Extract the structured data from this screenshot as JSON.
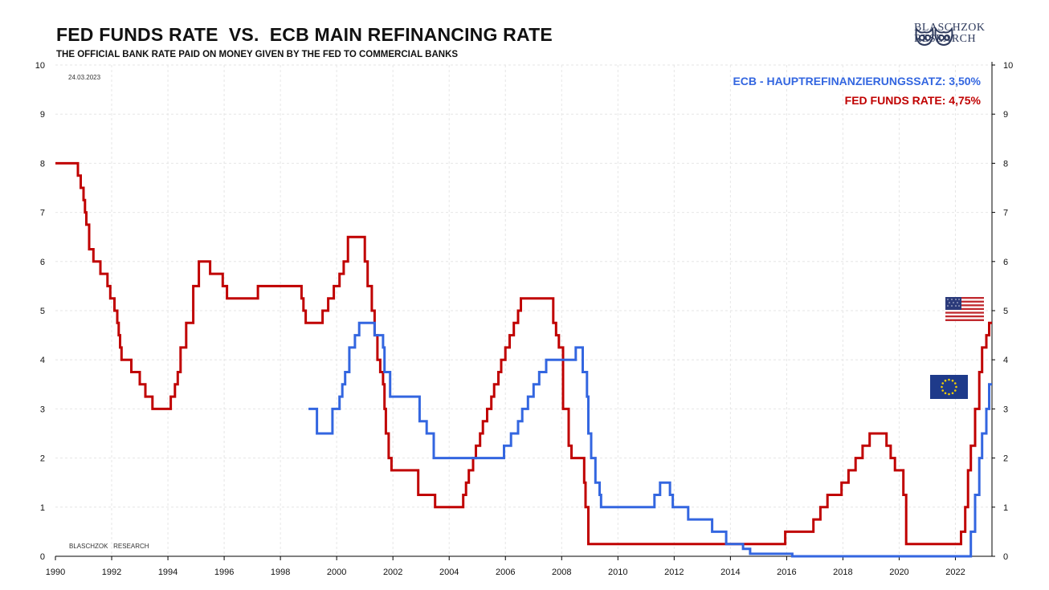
{
  "title": "FED FUNDS RATE  VS.  ECB MAIN REFINANCING RATE",
  "subtitle": "THE OFFICIAL BANK RATE PAID ON MONEY GIVEN BY THE FED TO COMMERCIAL BANKS",
  "logo": {
    "line1": "BLASCHZOK",
    "line2": "RESEARCH",
    "icon": "owl-logo-icon"
  },
  "date_label": "24.03.2023",
  "watermark": "BLASCHZOK   RESEARCH",
  "flags": {
    "us": "us-flag-icon",
    "eu": "eu-flag-icon"
  },
  "colors": {
    "fed": "#c00000",
    "ecb": "#3366e0",
    "grid": "#e6e6e6",
    "axis": "#000000"
  },
  "chart_data": {
    "type": "line",
    "title": "FED FUNDS RATE  VS.  ECB MAIN REFINANCING RATE",
    "subtitle": "THE OFFICIAL BANK RATE PAID ON MONEY GIVEN BY THE FED TO COMMERCIAL BANKS",
    "xlabel": "",
    "ylabel": "",
    "xlim": [
      1990,
      2023.3
    ],
    "ylim": [
      0,
      10
    ],
    "x_ticks": [
      "1990",
      "1992",
      "1994",
      "1996",
      "1998",
      "2000",
      "2002",
      "2004",
      "2006",
      "2008",
      "2010",
      "2012",
      "2014",
      "2016",
      "2018",
      "2020",
      "2022"
    ],
    "y_ticks": [
      "0",
      "1",
      "2",
      "3",
      "4",
      "5",
      "6",
      "7",
      "8",
      "9",
      "10"
    ],
    "grid": true,
    "legend_position": "top-right",
    "legend": [
      {
        "label": "ECB - HAUPTREFINANZIERUNGSSATZ: 3,50%",
        "color": "#3366e0"
      },
      {
        "label": "FED FUNDS RATE: 4,75%",
        "color": "#c00000"
      }
    ],
    "series": [
      {
        "key": "fed",
        "step": true,
        "points": [
          [
            1990.0,
            8.0
          ],
          [
            1990.8,
            7.75
          ],
          [
            1990.9,
            7.5
          ],
          [
            1991.0,
            7.25
          ],
          [
            1991.05,
            7.0
          ],
          [
            1991.1,
            6.75
          ],
          [
            1991.2,
            6.25
          ],
          [
            1991.35,
            6.0
          ],
          [
            1991.6,
            5.75
          ],
          [
            1991.85,
            5.5
          ],
          [
            1991.95,
            5.25
          ],
          [
            1992.1,
            5.0
          ],
          [
            1992.2,
            4.75
          ],
          [
            1992.25,
            4.5
          ],
          [
            1992.3,
            4.25
          ],
          [
            1992.35,
            4.0
          ],
          [
            1992.7,
            3.75
          ],
          [
            1993.0,
            3.5
          ],
          [
            1993.2,
            3.25
          ],
          [
            1993.45,
            3.0
          ],
          [
            1994.1,
            3.25
          ],
          [
            1994.25,
            3.5
          ],
          [
            1994.35,
            3.75
          ],
          [
            1994.45,
            4.25
          ],
          [
            1994.65,
            4.75
          ],
          [
            1994.9,
            5.5
          ],
          [
            1995.1,
            6.0
          ],
          [
            1995.5,
            5.75
          ],
          [
            1995.95,
            5.5
          ],
          [
            1996.1,
            5.25
          ],
          [
            1997.2,
            5.5
          ],
          [
            1998.75,
            5.25
          ],
          [
            1998.82,
            5.0
          ],
          [
            1998.9,
            4.75
          ],
          [
            1999.5,
            5.0
          ],
          [
            1999.7,
            5.25
          ],
          [
            1999.9,
            5.5
          ],
          [
            2000.1,
            5.75
          ],
          [
            2000.25,
            6.0
          ],
          [
            2000.4,
            6.5
          ],
          [
            2001.0,
            6.0
          ],
          [
            2001.1,
            5.5
          ],
          [
            2001.25,
            5.0
          ],
          [
            2001.35,
            4.5
          ],
          [
            2001.45,
            4.0
          ],
          [
            2001.55,
            3.75
          ],
          [
            2001.65,
            3.5
          ],
          [
            2001.7,
            3.0
          ],
          [
            2001.75,
            2.5
          ],
          [
            2001.85,
            2.0
          ],
          [
            2001.95,
            1.75
          ],
          [
            2002.9,
            1.25
          ],
          [
            2003.5,
            1.0
          ],
          [
            2004.5,
            1.25
          ],
          [
            2004.6,
            1.5
          ],
          [
            2004.7,
            1.75
          ],
          [
            2004.85,
            2.0
          ],
          [
            2004.95,
            2.25
          ],
          [
            2005.1,
            2.5
          ],
          [
            2005.2,
            2.75
          ],
          [
            2005.35,
            3.0
          ],
          [
            2005.5,
            3.25
          ],
          [
            2005.6,
            3.5
          ],
          [
            2005.75,
            3.75
          ],
          [
            2005.85,
            4.0
          ],
          [
            2006.0,
            4.25
          ],
          [
            2006.15,
            4.5
          ],
          [
            2006.3,
            4.75
          ],
          [
            2006.45,
            5.0
          ],
          [
            2006.55,
            5.25
          ],
          [
            2007.7,
            4.75
          ],
          [
            2007.8,
            4.5
          ],
          [
            2007.9,
            4.25
          ],
          [
            2008.05,
            3.0
          ],
          [
            2008.25,
            2.25
          ],
          [
            2008.35,
            2.0
          ],
          [
            2008.8,
            1.5
          ],
          [
            2008.85,
            1.0
          ],
          [
            2008.95,
            0.25
          ],
          [
            2015.95,
            0.5
          ],
          [
            2016.95,
            0.75
          ],
          [
            2017.2,
            1.0
          ],
          [
            2017.45,
            1.25
          ],
          [
            2017.95,
            1.5
          ],
          [
            2018.2,
            1.75
          ],
          [
            2018.45,
            2.0
          ],
          [
            2018.7,
            2.25
          ],
          [
            2018.95,
            2.5
          ],
          [
            2019.55,
            2.25
          ],
          [
            2019.7,
            2.0
          ],
          [
            2019.85,
            1.75
          ],
          [
            2020.15,
            1.25
          ],
          [
            2020.25,
            0.25
          ],
          [
            2022.2,
            0.5
          ],
          [
            2022.35,
            1.0
          ],
          [
            2022.45,
            1.75
          ],
          [
            2022.55,
            2.25
          ],
          [
            2022.7,
            3.0
          ],
          [
            2022.85,
            3.75
          ],
          [
            2022.95,
            4.25
          ],
          [
            2023.1,
            4.5
          ],
          [
            2023.2,
            4.75
          ],
          [
            2023.3,
            4.75
          ]
        ]
      },
      {
        "key": "ecb",
        "step": true,
        "points": [
          [
            1999.0,
            3.0
          ],
          [
            1999.3,
            2.5
          ],
          [
            1999.85,
            3.0
          ],
          [
            2000.1,
            3.25
          ],
          [
            2000.2,
            3.5
          ],
          [
            2000.3,
            3.75
          ],
          [
            2000.45,
            4.25
          ],
          [
            2000.65,
            4.5
          ],
          [
            2000.8,
            4.75
          ],
          [
            2001.35,
            4.5
          ],
          [
            2001.65,
            4.25
          ],
          [
            2001.7,
            3.75
          ],
          [
            2001.9,
            3.25
          ],
          [
            2002.95,
            2.75
          ],
          [
            2003.2,
            2.5
          ],
          [
            2003.45,
            2.0
          ],
          [
            2005.95,
            2.25
          ],
          [
            2006.2,
            2.5
          ],
          [
            2006.45,
            2.75
          ],
          [
            2006.6,
            3.0
          ],
          [
            2006.8,
            3.25
          ],
          [
            2007.0,
            3.5
          ],
          [
            2007.2,
            3.75
          ],
          [
            2007.45,
            4.0
          ],
          [
            2008.5,
            4.25
          ],
          [
            2008.75,
            3.75
          ],
          [
            2008.9,
            3.25
          ],
          [
            2008.95,
            2.5
          ],
          [
            2009.05,
            2.0
          ],
          [
            2009.2,
            1.5
          ],
          [
            2009.35,
            1.25
          ],
          [
            2009.4,
            1.0
          ],
          [
            2011.3,
            1.25
          ],
          [
            2011.5,
            1.5
          ],
          [
            2011.85,
            1.25
          ],
          [
            2011.95,
            1.0
          ],
          [
            2012.5,
            0.75
          ],
          [
            2013.35,
            0.5
          ],
          [
            2013.85,
            0.25
          ],
          [
            2014.45,
            0.15
          ],
          [
            2014.7,
            0.05
          ],
          [
            2016.2,
            0.0
          ],
          [
            2022.55,
            0.5
          ],
          [
            2022.7,
            1.25
          ],
          [
            2022.85,
            2.0
          ],
          [
            2022.95,
            2.5
          ],
          [
            2023.1,
            3.0
          ],
          [
            2023.2,
            3.5
          ],
          [
            2023.3,
            3.5
          ]
        ]
      }
    ]
  }
}
